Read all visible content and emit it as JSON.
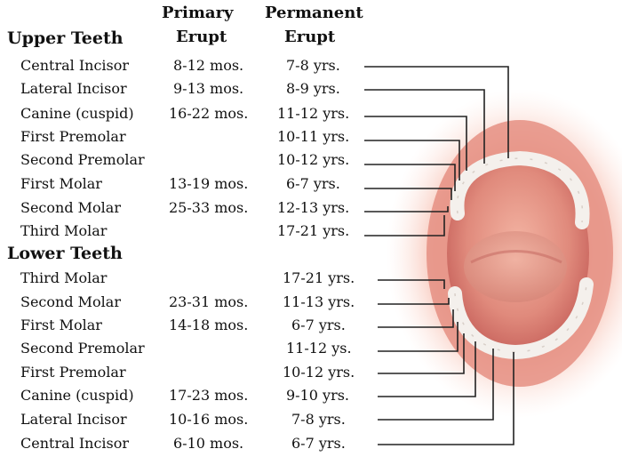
{
  "headers": {
    "primary_line1": "Primary",
    "primary_line2": "Erupt",
    "permanent_line1": "Permanent",
    "permanent_line2": "Erupt"
  },
  "upper": {
    "title": "Upper Teeth",
    "rows": [
      {
        "tooth": "Central Incisor",
        "primary": "8-12 mos.",
        "permanent": "7-8 yrs."
      },
      {
        "tooth": "Lateral Incisor",
        "primary": "9-13 mos.",
        "permanent": "8-9 yrs."
      },
      {
        "tooth": "Canine (cuspid)",
        "primary": "16-22 mos.",
        "permanent": "11-12 yrs."
      },
      {
        "tooth": "First Premolar",
        "primary": "",
        "permanent": "10-11 yrs."
      },
      {
        "tooth": "Second Premolar",
        "primary": "",
        "permanent": "10-12 yrs."
      },
      {
        "tooth": "First Molar",
        "primary": "13-19 mos.",
        "permanent": "6-7 yrs."
      },
      {
        "tooth": "Second Molar",
        "primary": "25-33 mos.",
        "permanent": "12-13 yrs."
      },
      {
        "tooth": "Third Molar",
        "primary": "",
        "permanent": "17-21 yrs."
      }
    ]
  },
  "lower": {
    "title": "Lower Teeth",
    "rows": [
      {
        "tooth": "Third Molar",
        "primary": "",
        "permanent": "17-21 yrs."
      },
      {
        "tooth": "Second Molar",
        "primary": "23-31 mos.",
        "permanent": "11-13 yrs."
      },
      {
        "tooth": "First Molar",
        "primary": "14-18 mos.",
        "permanent": "6-7 yrs."
      },
      {
        "tooth": "Second Premolar",
        "primary": "",
        "permanent": "11-12 ys."
      },
      {
        "tooth": "First Premolar",
        "primary": "",
        "permanent": "10-12 yrs."
      },
      {
        "tooth": "Canine (cuspid)",
        "primary": "17-23 mos.",
        "permanent": "9-10 yrs."
      },
      {
        "tooth": "Lateral Incisor",
        "primary": "10-16 mos.",
        "permanent": "7-8 yrs."
      },
      {
        "tooth": "Central Incisor",
        "primary": "6-10 mos.",
        "permanent": "6-7 yrs."
      }
    ]
  },
  "colors": {
    "glow": "#f6b8a8",
    "lips": "#e58f83",
    "cavity": "#c9605a",
    "tongue": "#e59a8b",
    "teeth": "#f4f0ec",
    "leader": "#222222"
  },
  "icons": {
    "mouth": "open-mouth-illustration"
  }
}
